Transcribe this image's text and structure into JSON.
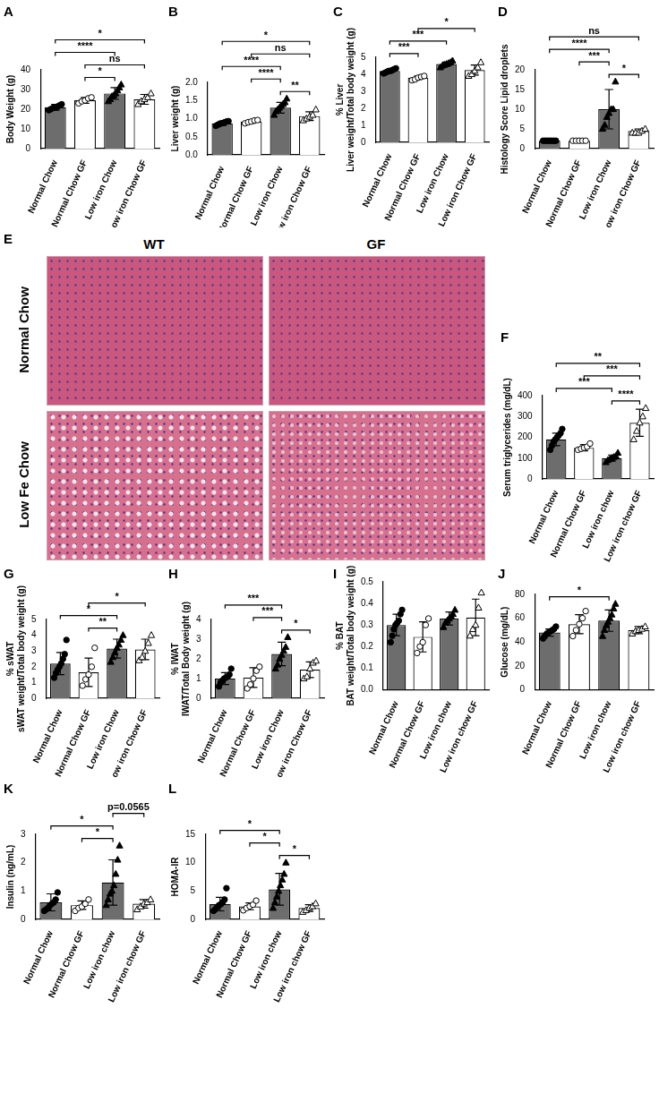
{
  "chart_data": [
    {
      "panel": "A",
      "type": "bar",
      "y_label": [
        "Body Weight (g)"
      ],
      "categories": [
        "Normal Chow",
        "Normal Chow GF",
        "Low iron Chow",
        "Low iron Chow GF"
      ],
      "values": [
        21,
        24.5,
        28,
        25
      ],
      "errors": [
        1.5,
        1.5,
        3,
        2.5
      ],
      "points": [
        [
          19.5,
          20,
          20.5,
          21,
          21,
          21.5,
          22,
          22.5
        ],
        [
          23,
          24,
          24.5,
          25.5,
          26
        ],
        [
          24,
          25,
          26.5,
          27,
          28,
          29.5,
          31,
          32.5
        ],
        [
          22.5,
          24,
          25,
          26,
          28
        ]
      ],
      "colors": [
        "#6d6d6d",
        "#ffffff",
        "#6d6d6d",
        "#ffffff"
      ],
      "comparisons": [
        {
          "groups": [
            1,
            2
          ],
          "label": "*"
        },
        {
          "groups": [
            1,
            3
          ],
          "label": "ns"
        },
        {
          "groups": [
            0,
            2
          ],
          "label": "****"
        },
        {
          "groups": [
            0,
            3
          ],
          "label": "*"
        }
      ],
      "ylim": [
        0,
        40
      ],
      "yticks": [
        0,
        10,
        20,
        30,
        40
      ],
      "grid": false
    },
    {
      "panel": "B",
      "type": "bar",
      "y_label": [
        "Liver weight (g)"
      ],
      "categories": [
        "Normal Chow",
        "Normal Chow GF",
        "Low iron Chow",
        "Low iron Chow GF"
      ],
      "values": [
        0.87,
        0.92,
        1.3,
        1.07
      ],
      "errors": [
        0.06,
        0.05,
        0.15,
        0.12
      ],
      "points": [
        [
          0.8,
          0.83,
          0.85,
          0.87,
          0.88,
          0.9,
          0.92,
          0.93
        ],
        [
          0.87,
          0.9,
          0.92,
          0.95,
          0.96
        ],
        [
          1.1,
          1.2,
          1.25,
          1.3,
          1.35,
          1.4,
          1.45,
          1.55
        ],
        [
          0.95,
          1.0,
          1.05,
          1.1,
          1.25
        ]
      ],
      "colors": [
        "#6d6d6d",
        "#ffffff",
        "#6d6d6d",
        "#ffffff"
      ],
      "comparisons": [
        {
          "groups": [
            2,
            3
          ],
          "label": "**"
        },
        {
          "groups": [
            1,
            2
          ],
          "label": "****"
        },
        {
          "groups": [
            0,
            2
          ],
          "label": "****"
        },
        {
          "groups": [
            1,
            3
          ],
          "label": "ns"
        },
        {
          "groups": [
            0,
            3
          ],
          "label": "*"
        }
      ],
      "ylim": [
        0,
        2
      ],
      "yticks": [
        {
          "value": 0,
          "label": "0.0"
        },
        {
          "value": 0.5,
          "label": "0.5"
        },
        {
          "value": 1,
          "label": "1.0"
        },
        {
          "value": 1.5,
          "label": "1.5"
        },
        {
          "value": 2,
          "label": "2.0"
        }
      ],
      "grid": false
    },
    {
      "panel": "C",
      "type": "bar",
      "y_label": [
        "% Liver",
        "Liver weight/Total body weight (g)"
      ],
      "categories": [
        "Normal Chow",
        "Normal Chow GF",
        "Low iron Chow",
        "Low iron Chow GF"
      ],
      "values": [
        4.2,
        3.8,
        4.6,
        4.25
      ],
      "errors": [
        0.1,
        0.1,
        0.12,
        0.3
      ],
      "points": [
        [
          4.05,
          4.1,
          4.15,
          4.2,
          4.2,
          4.25,
          4.3,
          4.35
        ],
        [
          3.65,
          3.7,
          3.8,
          3.85,
          3.9
        ],
        [
          4.4,
          4.5,
          4.55,
          4.6,
          4.65,
          4.7,
          4.8
        ],
        [
          3.9,
          4.0,
          4.2,
          4.4,
          4.7
        ]
      ],
      "colors": [
        "#6d6d6d",
        "#ffffff",
        "#6d6d6d",
        "#ffffff"
      ],
      "comparisons": [
        {
          "groups": [
            0,
            1
          ],
          "label": "***"
        },
        {
          "groups": [
            0,
            2
          ],
          "label": "***"
        },
        {
          "groups": [
            1,
            3
          ],
          "label": "*"
        }
      ],
      "ylim": [
        0,
        5
      ],
      "yticks": [
        0,
        1,
        2,
        3,
        4,
        5
      ],
      "grid": false
    },
    {
      "panel": "D",
      "type": "bar",
      "y_label": [
        "Histology Score Lipid droplets"
      ],
      "categories": [
        "Normal Chow",
        "Normal Chow GF",
        "Low iron Chow",
        "Low iron Chow GF"
      ],
      "values": [
        2,
        2,
        10,
        4.5
      ],
      "errors": [
        0.3,
        0.3,
        5,
        0.5
      ],
      "points": [
        [
          2,
          2,
          2,
          2,
          2,
          2,
          2,
          2
        ],
        [
          2,
          2,
          2,
          2,
          2
        ],
        [
          5,
          6,
          8,
          9,
          10,
          10,
          17
        ],
        [
          4,
          4,
          4,
          4.5,
          5
        ]
      ],
      "colors": [
        "#6d6d6d",
        "#ffffff",
        "#6d6d6d",
        "#ffffff"
      ],
      "comparisons": [
        {
          "groups": [
            2,
            3
          ],
          "label": "*"
        },
        {
          "groups": [
            1,
            2
          ],
          "label": "***"
        },
        {
          "groups": [
            0,
            2
          ],
          "label": "****"
        },
        {
          "groups": [
            0,
            3
          ],
          "label": "ns"
        }
      ],
      "ylim": [
        0,
        20
      ],
      "yticks": [
        0,
        5,
        10,
        15,
        20
      ],
      "grid": false
    },
    {
      "panel": "E",
      "type": "image_grid",
      "columns": [
        "WT",
        "GF"
      ],
      "rows": [
        "Normal Chow",
        "Low Fe Chow"
      ]
    },
    {
      "panel": "F",
      "type": "bar",
      "y_label": [
        "Serum triglycerides (mg/dL)"
      ],
      "categories": [
        "Normal Chow",
        "Normal Chow GF",
        "Low iron chow",
        "Low iron chow GF"
      ],
      "values": [
        190,
        150,
        100,
        270
      ],
      "errors": [
        30,
        15,
        15,
        65
      ],
      "points": [
        [
          140,
          160,
          180,
          190,
          200,
          210,
          220,
          240
        ],
        [
          140,
          145,
          150,
          155,
          170
        ],
        [
          80,
          90,
          95,
          100,
          105,
          110,
          125
        ],
        [
          190,
          230,
          270,
          300,
          340
        ]
      ],
      "colors": [
        "#6d6d6d",
        "#ffffff",
        "#6d6d6d",
        "#ffffff"
      ],
      "comparisons": [
        {
          "groups": [
            2,
            3
          ],
          "label": "****"
        },
        {
          "groups": [
            0,
            2
          ],
          "label": "***"
        },
        {
          "groups": [
            1,
            3
          ],
          "label": "***"
        },
        {
          "groups": [
            0,
            3
          ],
          "label": "**"
        }
      ],
      "ylim": [
        0,
        400
      ],
      "yticks": [
        0,
        100,
        200,
        300,
        400
      ],
      "grid": false
    },
    {
      "panel": "G",
      "type": "bar",
      "y_label": [
        "% sWAT",
        "sWAT weight/Total body weight (g)"
      ],
      "categories": [
        "Normal Chow",
        "Normal Chow GF",
        "Low iron Chow",
        "Low iron Chow GF"
      ],
      "values": [
        2.2,
        1.65,
        3.15,
        3.1
      ],
      "errors": [
        0.7,
        0.9,
        0.6,
        0.65
      ],
      "points": [
        [
          1.3,
          1.6,
          1.8,
          2.0,
          2.2,
          2.5,
          2.8,
          3.7
        ],
        [
          0.8,
          1.2,
          1.5,
          2.0,
          3.2
        ],
        [
          2.3,
          2.6,
          2.9,
          3.2,
          3.4,
          3.7,
          4.0
        ],
        [
          2.4,
          2.6,
          3.0,
          3.5,
          4.0
        ]
      ],
      "colors": [
        "#6d6d6d",
        "#ffffff",
        "#6d6d6d",
        "#ffffff"
      ],
      "comparisons": [
        {
          "groups": [
            1,
            2
          ],
          "label": "**"
        },
        {
          "groups": [
            0,
            2
          ],
          "label": "*"
        },
        {
          "groups": [
            1,
            3
          ],
          "label": "*"
        }
      ],
      "ylim": [
        0,
        5
      ],
      "yticks": [
        0,
        1,
        2,
        3,
        4,
        5
      ],
      "grid": false
    },
    {
      "panel": "H",
      "type": "bar",
      "y_label": [
        "% IWAT",
        "IWAT/Total Body weight (g)"
      ],
      "categories": [
        "Normal Chow",
        "Normal Chow GF",
        "Low iron Chow",
        "Low iron Chow GF"
      ],
      "values": [
        1.0,
        1.05,
        2.25,
        1.45
      ],
      "errors": [
        0.3,
        0.5,
        0.6,
        0.4
      ],
      "points": [
        [
          0.6,
          0.8,
          0.9,
          1.0,
          1.05,
          1.1,
          1.2,
          1.5
        ],
        [
          0.5,
          0.7,
          1.0,
          1.4,
          1.6
        ],
        [
          1.5,
          1.7,
          2.0,
          2.2,
          2.4,
          2.6,
          3.1
        ],
        [
          1.0,
          1.1,
          1.5,
          1.8,
          1.9
        ]
      ],
      "colors": [
        "#6d6d6d",
        "#ffffff",
        "#6d6d6d",
        "#ffffff"
      ],
      "comparisons": [
        {
          "groups": [
            2,
            3
          ],
          "label": "*"
        },
        {
          "groups": [
            1,
            2
          ],
          "label": "***"
        },
        {
          "groups": [
            0,
            2
          ],
          "label": "***"
        }
      ],
      "ylim": [
        0,
        4
      ],
      "yticks": [
        0,
        1,
        2,
        3,
        4
      ],
      "grid": false
    },
    {
      "panel": "I",
      "type": "bar",
      "y_label": [
        "% BAT",
        "BAT weight/Total body weight (g)"
      ],
      "categories": [
        "Normal Chow",
        "Normal Chow GF",
        "Low iron chow",
        "Low iron chow GF"
      ],
      "values": [
        0.3,
        0.245,
        0.33,
        0.335
      ],
      "errors": [
        0.05,
        0.07,
        0.03,
        0.085
      ],
      "points": [
        [
          0.22,
          0.25,
          0.28,
          0.3,
          0.31,
          0.32,
          0.35,
          0.37
        ],
        [
          0.17,
          0.2,
          0.22,
          0.3,
          0.33
        ],
        [
          0.29,
          0.31,
          0.32,
          0.33,
          0.34,
          0.35,
          0.37
        ],
        [
          0.25,
          0.28,
          0.3,
          0.38,
          0.45
        ]
      ],
      "colors": [
        "#6d6d6d",
        "#ffffff",
        "#6d6d6d",
        "#ffffff"
      ],
      "comparisons": [],
      "ylim": [
        0,
        0.5
      ],
      "yticks": [
        {
          "value": 0,
          "label": "0.0"
        },
        0.1,
        0.2,
        0.3,
        0.4,
        0.5
      ],
      "grid": false
    },
    {
      "panel": "J",
      "type": "bar",
      "y_label": [
        "Glucose (mg/dL)"
      ],
      "categories": [
        "Normal Chow",
        "Normal Chow GF",
        "Low iron chow",
        "Low iron chow GF"
      ],
      "values": [
        48,
        55,
        58,
        50
      ],
      "errors": [
        3,
        8,
        9,
        3
      ],
      "points": [
        [
          43,
          45,
          47,
          48,
          49,
          50,
          51,
          53
        ],
        [
          45,
          50,
          55,
          60,
          66
        ],
        [
          45,
          50,
          54,
          57,
          60,
          63,
          68,
          72
        ],
        [
          47,
          49,
          50,
          51,
          53
        ]
      ],
      "colors": [
        "#6d6d6d",
        "#ffffff",
        "#6d6d6d",
        "#ffffff"
      ],
      "comparisons": [
        {
          "groups": [
            0,
            2
          ],
          "label": "*"
        }
      ],
      "ylim": [
        0,
        80
      ],
      "yticks": [
        0,
        20,
        40,
        60,
        80
      ],
      "grid": false
    },
    {
      "panel": "K",
      "type": "bar",
      "y_label": [
        "Insulin (ng/mL)"
      ],
      "categories": [
        "Normal Chow",
        "Normal Chow GF",
        "Low iron chow",
        "Low iron chow GF"
      ],
      "values": [
        0.6,
        0.5,
        1.3,
        0.55
      ],
      "errors": [
        0.3,
        0.15,
        0.8,
        0.15
      ],
      "points": [
        [
          0.3,
          0.35,
          0.4,
          0.5,
          0.55,
          0.6,
          0.7,
          0.95
        ],
        [
          0.3,
          0.4,
          0.45,
          0.55,
          0.7
        ],
        [
          0.5,
          0.7,
          0.9,
          1.0,
          1.2,
          1.6,
          2.1,
          2.6
        ],
        [
          0.35,
          0.45,
          0.55,
          0.6,
          0.7
        ]
      ],
      "colors": [
        "#6d6d6d",
        "#ffffff",
        "#6d6d6d",
        "#ffffff"
      ],
      "comparisons": [
        {
          "groups": [
            1,
            2
          ],
          "label": "*"
        },
        {
          "groups": [
            0,
            2
          ],
          "label": "*"
        },
        {
          "groups": [
            2,
            3
          ],
          "label": "p=0.0565"
        }
      ],
      "ylim": [
        0,
        3
      ],
      "yticks": [
        0,
        1,
        2,
        3
      ],
      "grid": false
    },
    {
      "panel": "L",
      "type": "bar",
      "y_label": [
        "HOMA-IR"
      ],
      "categories": [
        "Normal Chow",
        "Normal Chow GF",
        "Low iron chow",
        "Low iron chow GF"
      ],
      "values": [
        2.7,
        2.3,
        5.3,
        2.0
      ],
      "errors": [
        1.2,
        0.6,
        2.8,
        0.6
      ],
      "points": [
        [
          1.5,
          1.8,
          2.2,
          2.5,
          2.7,
          3.0,
          3.5,
          5.5
        ],
        [
          1.6,
          2.0,
          2.3,
          2.6,
          3.3
        ],
        [
          2.0,
          3.0,
          4.0,
          5.0,
          6.0,
          7.0,
          8.0,
          10.0
        ],
        [
          1.3,
          1.6,
          2.0,
          2.3,
          2.8
        ]
      ],
      "colors": [
        "#6d6d6d",
        "#ffffff",
        "#6d6d6d",
        "#ffffff"
      ],
      "comparisons": [
        {
          "groups": [
            2,
            3
          ],
          "label": "*"
        },
        {
          "groups": [
            1,
            2
          ],
          "label": "*"
        },
        {
          "groups": [
            0,
            2
          ],
          "label": "*"
        }
      ],
      "ylim": [
        0,
        15
      ],
      "yticks": [
        0,
        5,
        10,
        15
      ],
      "grid": false
    }
  ]
}
